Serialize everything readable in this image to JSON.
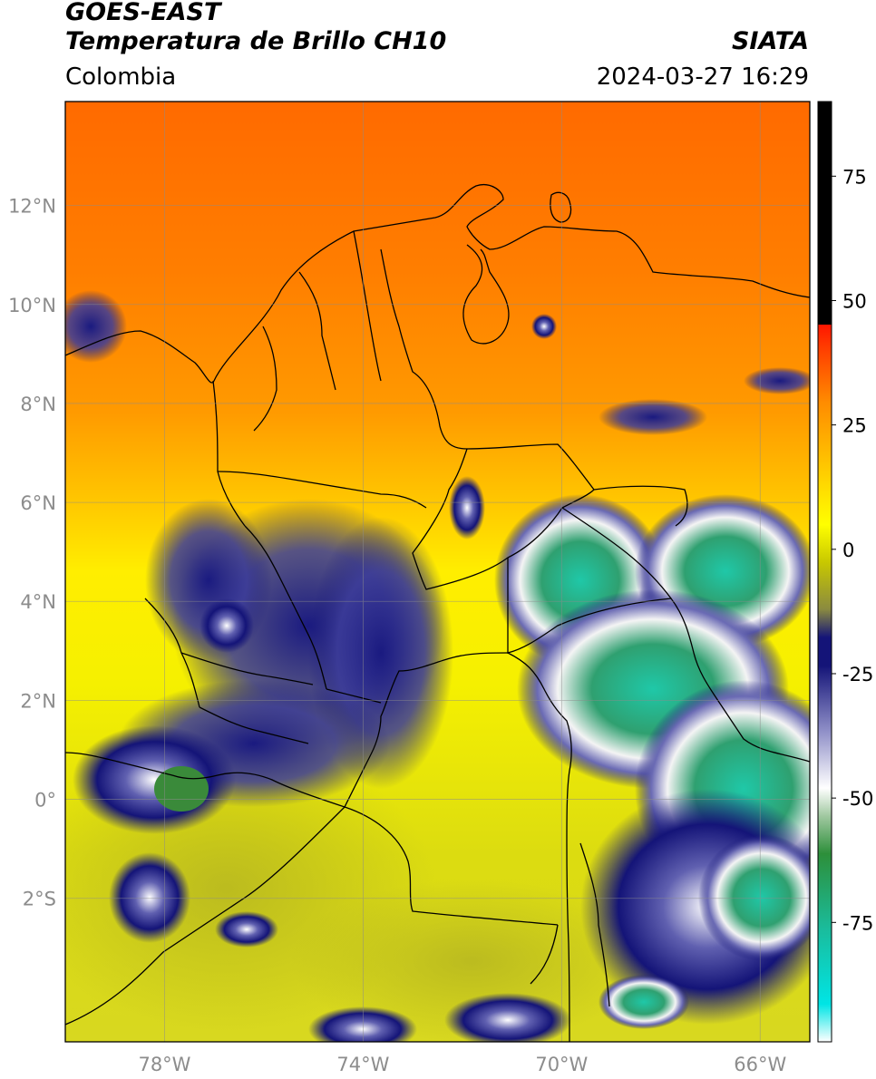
{
  "header": {
    "title_line1": "GOES-EAST",
    "title_line2": "Temperatura de Brillo CH10",
    "region": "Colombia",
    "organization": "SIATA",
    "datetime": "2024-03-27 16:29"
  },
  "map": {
    "lon_range": [
      -80,
      -65
    ],
    "lat_range": [
      -4.9,
      14.1
    ],
    "lon_ticks": [
      {
        "value": -78,
        "label": "78°W"
      },
      {
        "value": -74,
        "label": "74°W"
      },
      {
        "value": -70,
        "label": "70°W"
      },
      {
        "value": -66,
        "label": "66°W"
      }
    ],
    "lat_ticks": [
      {
        "value": 12,
        "label": "12°N"
      },
      {
        "value": 10,
        "label": "10°N"
      },
      {
        "value": 8,
        "label": "8°N"
      },
      {
        "value": 6,
        "label": "6°N"
      },
      {
        "value": 4,
        "label": "4°N"
      },
      {
        "value": 2,
        "label": "2°N"
      },
      {
        "value": 0,
        "label": "0°"
      },
      {
        "value": -2,
        "label": "2°S"
      }
    ],
    "grid": true
  },
  "colorbar": {
    "range": [
      -99,
      90
    ],
    "ticks": [
      {
        "value": 75,
        "label": "75"
      },
      {
        "value": 50,
        "label": "50"
      },
      {
        "value": 25,
        "label": "25"
      },
      {
        "value": 0,
        "label": "0"
      },
      {
        "value": -25,
        "label": "-25"
      },
      {
        "value": -50,
        "label": "-50"
      },
      {
        "value": -75,
        "label": "-75"
      }
    ],
    "colors": {
      "black": "#000000",
      "red": "#ff1500",
      "orange": "#ff8c00",
      "yellow": "#ffff00",
      "olive": "#c8c800",
      "navy": "#141478",
      "white": "#ffffff",
      "green": "#3a8a3a",
      "turquoise": "#1abc9c",
      "cyan": "#00e5e5"
    }
  }
}
